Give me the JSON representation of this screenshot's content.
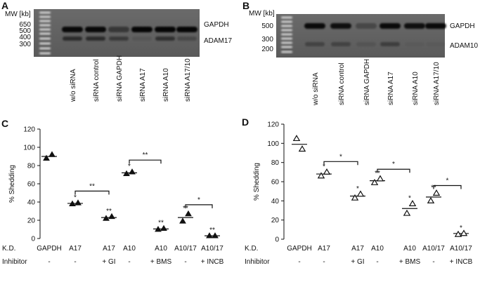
{
  "panels": [
    {
      "letter": "A"
    },
    {
      "letter": "B"
    },
    {
      "letter": "C"
    },
    {
      "letter": "D"
    }
  ],
  "gels": [
    {
      "mw_header": "MW [kb]",
      "mw_ticks": [
        "650",
        "500",
        "400",
        "300"
      ],
      "band_labels": [
        "GAPDH",
        "ADAM17"
      ],
      "lanes": [
        "w/o siRNA",
        "siRNA control",
        "siRNA GAPDH",
        "siRNA A17",
        "siRNA A10",
        "siRNA A17/10"
      ]
    },
    {
      "mw_header": "MW [kb]",
      "mw_ticks": [
        "500",
        "300",
        "200"
      ],
      "band_labels": [
        "GAPDH",
        "ADAM10"
      ],
      "lanes": [
        "w/o siRNA",
        "siRNA control",
        "siRNA GAPDH",
        "siRNA A17",
        "siRNA A10",
        "siRNA A17/10"
      ]
    }
  ],
  "table_rows": [
    "K.D.",
    "Inhibitor"
  ],
  "chart_data": [
    {
      "type": "scatter",
      "panel": "C",
      "marker": "filled-triangle",
      "ylabel": "% Shedding",
      "ylim": [
        0,
        120
      ],
      "yticks": [
        0,
        20,
        40,
        60,
        80,
        100,
        120
      ],
      "categories": [
        "GAPDH",
        "A17",
        "A17",
        "A10",
        "A10",
        "A10/17",
        "A10/17"
      ],
      "inhibitors": [
        "-",
        "-",
        "+ GI",
        "-",
        "+ BMS",
        "-",
        "+ INCB"
      ],
      "points": [
        [
          88,
          92
        ],
        [
          38,
          39
        ],
        [
          22,
          24
        ],
        [
          71,
          73
        ],
        [
          10,
          11
        ],
        [
          19,
          27
        ],
        [
          3,
          3
        ]
      ],
      "means": [
        90,
        38.5,
        23,
        72,
        10.5,
        23,
        3
      ],
      "sig": [
        "",
        "*",
        "**",
        "*",
        "**",
        "**",
        "**"
      ],
      "brackets": [
        {
          "from": 1,
          "to": 2,
          "y": 52,
          "label": "**"
        },
        {
          "from": 3,
          "to": 4,
          "y": 86,
          "label": "**"
        },
        {
          "from": 5,
          "to": 6,
          "y": 37,
          "label": "*"
        }
      ]
    },
    {
      "type": "scatter",
      "panel": "D",
      "marker": "open-triangle",
      "ylabel": "% Shedding",
      "ylim": [
        0,
        120
      ],
      "yticks": [
        0,
        20,
        40,
        60,
        80,
        100,
        120
      ],
      "categories": [
        "GAPDH",
        "A17",
        "A17",
        "A10",
        "A10",
        "A10/17",
        "A10/17"
      ],
      "inhibitors": [
        "-",
        "-",
        "+ GI",
        "-",
        "+ BMS",
        "-",
        "+ INCB"
      ],
      "points": [
        [
          105,
          94
        ],
        [
          66,
          70
        ],
        [
          43,
          47
        ],
        [
          59,
          63
        ],
        [
          27,
          37
        ],
        [
          40,
          48
        ],
        [
          5,
          6
        ]
      ],
      "means": [
        99,
        68,
        45,
        61,
        32,
        44,
        6
      ],
      "sig": [
        "",
        "*",
        "*",
        "**",
        "*",
        "**",
        "*"
      ],
      "brackets": [
        {
          "from": 1,
          "to": 2,
          "y": 81,
          "label": "*"
        },
        {
          "from": 3,
          "to": 4,
          "y": 73,
          "label": "*"
        },
        {
          "from": 5,
          "to": 6,
          "y": 56,
          "label": "*"
        }
      ]
    }
  ]
}
